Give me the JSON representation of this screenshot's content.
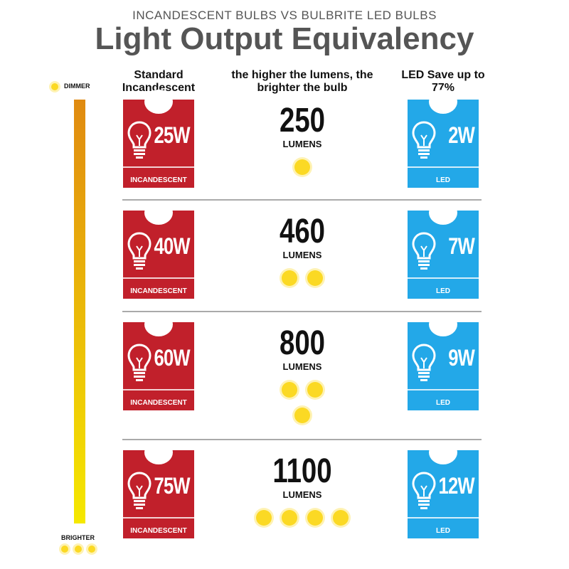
{
  "subtitle": "INCANDESCENT BULBS VS BULBRITE LED BULBS",
  "title": "Light Output Equivalency",
  "headers": {
    "incandescent": "Standard Incandescent",
    "lumens": "the higher the lumens, the brighter the bulb",
    "led": "LED Save up to 77%"
  },
  "scale": {
    "top": "DIMMER",
    "bottom": "BRIGHTER",
    "colors": {
      "top": "#e08a10",
      "bottom": "#f5e800"
    }
  },
  "card_labels": {
    "incandescent": "INCANDESCENT",
    "led": "LED"
  },
  "lumens_unit": "LUMENS",
  "colors": {
    "incandescent": "#c1202b",
    "led": "#23a8e8",
    "sun": "#fbd924"
  },
  "rows": [
    {
      "incandescent": "25W",
      "lumens": "250",
      "led": "2W",
      "suns": 1
    },
    {
      "incandescent": "40W",
      "lumens": "460",
      "led": "7W",
      "suns": 2
    },
    {
      "incandescent": "60W",
      "lumens": "800",
      "led": "9W",
      "suns": 3
    },
    {
      "incandescent": "75W",
      "lumens": "1100",
      "led": "12W",
      "suns": 4
    }
  ]
}
